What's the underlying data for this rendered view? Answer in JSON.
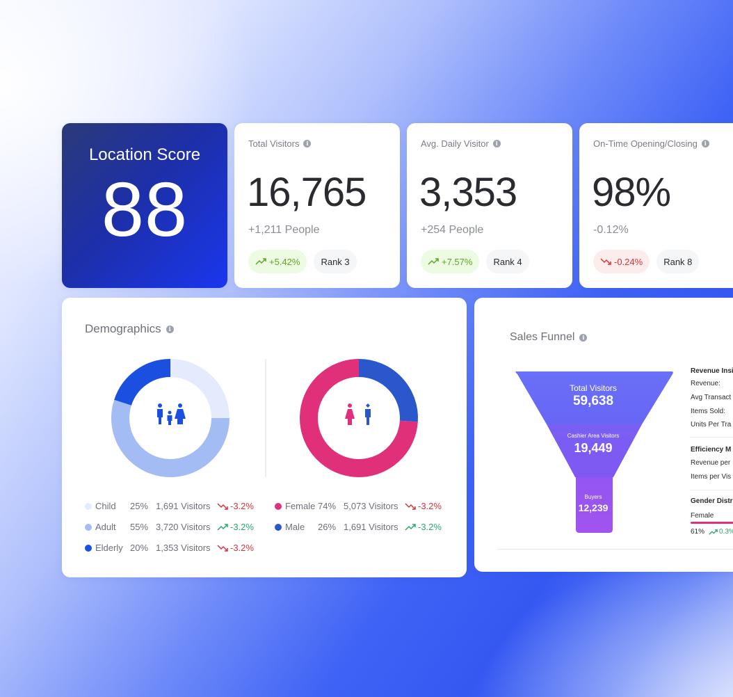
{
  "location_score": {
    "title": "Location Score",
    "value": "88"
  },
  "kpis": [
    {
      "title": "Total Visitors",
      "value": "16,765",
      "sub": "+1,211 People",
      "change": "+5.42%",
      "direction": "up",
      "rank": "Rank 3"
    },
    {
      "title": "Avg. Daily Visitor",
      "value": "3,353",
      "sub": "+254 People",
      "change": "+7.57%",
      "direction": "up",
      "rank": "Rank 4"
    },
    {
      "title": "On-Time Opening/Closing",
      "value": "98%",
      "sub": "-0.12%",
      "change": "-0.24%",
      "direction": "down",
      "rank": "Rank 8"
    }
  ],
  "demographics": {
    "title": "Demographics",
    "age": [
      {
        "name": "Child",
        "percent": "25%",
        "visitors": "1,691 Visitors",
        "change": "-3.2%",
        "direction": "down",
        "color": "#e3ebfd",
        "value": 25
      },
      {
        "name": "Adult",
        "percent": "55%",
        "visitors": "3,720 Visitors",
        "change": "-3.2%",
        "direction": "up",
        "color": "#a4bcf4",
        "value": 55
      },
      {
        "name": "Elderly",
        "percent": "20%",
        "visitors": "1,353 Visitors",
        "change": "-3.2%",
        "direction": "down",
        "color": "#1a4fe0",
        "value": 20
      }
    ],
    "gender": [
      {
        "name": "Female",
        "percent": "74%",
        "visitors": "5,073 Visitors",
        "change": "-3.2%",
        "direction": "down",
        "color": "#e0307a",
        "value": 74
      },
      {
        "name": "Male",
        "percent": "26%",
        "visitors": "1,691 Visitors",
        "change": "-3.2%",
        "direction": "up",
        "color": "#2b57cc",
        "value": 26
      }
    ]
  },
  "sales_funnel": {
    "title": "Sales Funnel",
    "stages": [
      {
        "label": "Total Visitors",
        "value": "59,638"
      },
      {
        "label": "Cashier Area Visitors",
        "value": "19,449"
      },
      {
        "label": "Buyers",
        "value": "12,239"
      }
    ],
    "revenue_insights": {
      "title": "Revenue Insig",
      "items": [
        "Revenue:",
        "Avg Transact",
        "Items Sold:",
        "Units Per Tra"
      ]
    },
    "efficiency": {
      "title": "Efficiency M",
      "items": [
        "Revenue per",
        "Items per Vis"
      ]
    },
    "gender_dist": {
      "title": "Gender Distr",
      "label": "Female",
      "percent": "61%",
      "change": "0.3%"
    }
  },
  "colors": {
    "accent": "#1a36ee",
    "up": "#5aa81f",
    "down": "#d9343a",
    "funnel_top": "#6a6cf6",
    "funnel_mid": "#7a5ef2",
    "funnel_bottom": "#9a55f2"
  }
}
